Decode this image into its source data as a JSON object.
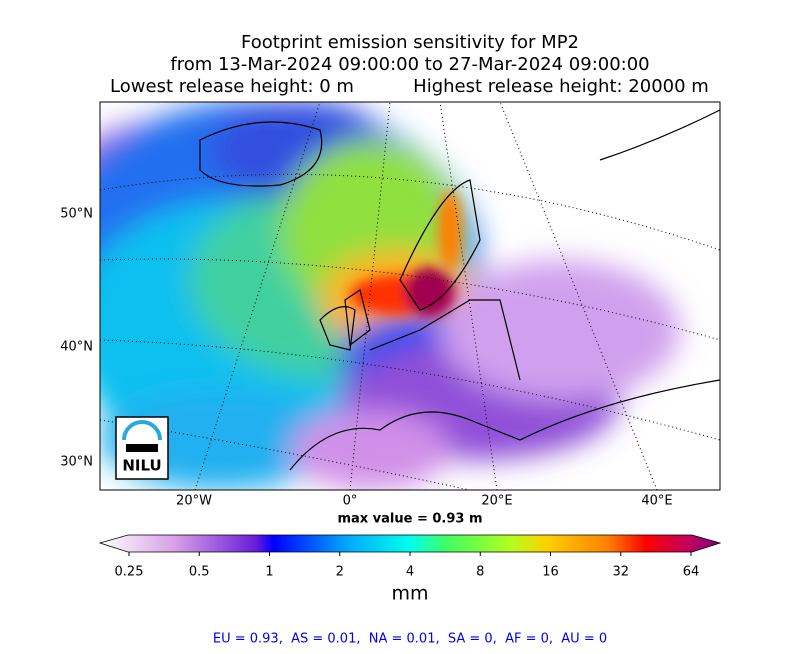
{
  "header": {
    "title": "Footprint emission sensitivity for MP2",
    "period": "from 13-Mar-2024 09:00:00 to 27-Mar-2024 09:00:00",
    "lowest": "Lowest release height: 0 m",
    "highest": "Highest release height: 20000 m"
  },
  "map": {
    "lat_labels": [
      "50°N",
      "40°N",
      "30°N"
    ],
    "lon_labels": [
      "20°W",
      "0°",
      "20°E",
      "40°E"
    ],
    "logo": "NILU"
  },
  "max_value": "max value = 0.93 m",
  "colorbar": {
    "ticks": [
      "0.25",
      "0.5",
      "1",
      "2",
      "4",
      "8",
      "16",
      "32",
      "64"
    ],
    "unit": "mm"
  },
  "footer": "EU = 0.93,  AS = 0.01,  NA = 0.01,  SA = 0,  AF = 0,  AU = 0"
}
